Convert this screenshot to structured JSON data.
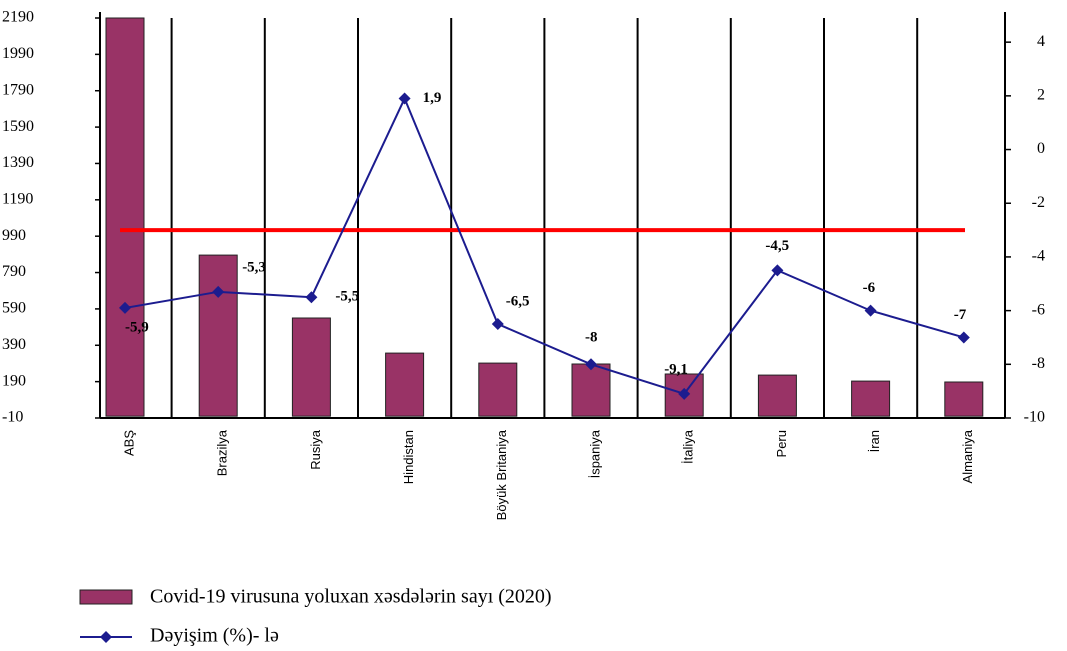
{
  "chart_data": {
    "type": "bar_line",
    "categories": [
      "ABŞ",
      "Brazilya",
      "Rusiya",
      "Hindistan",
      "Böyük Britaniya",
      "İspaniya",
      "İtaliya",
      "Peru",
      "İran",
      "Almaniya"
    ],
    "series": [
      {
        "name": "Covid-19 virusuna yoluxan xəsdələrin sayı (2020)",
        "type": "bar",
        "color": "#993366",
        "values": [
          2190,
          886,
          540,
          347,
          292,
          287,
          232,
          226,
          193,
          188
        ]
      },
      {
        "name": "Dəyişim (%)- lə",
        "type": "line",
        "axis": "y2",
        "color": "#1c1c8f",
        "values": [
          -5.9,
          -5.3,
          -5.5,
          1.9,
          -6.5,
          -8,
          -9.1,
          -4.5,
          -6,
          -7
        ],
        "value_labels": [
          "-5,9",
          "-5,3",
          "-5,5",
          "1,9",
          "-6,5",
          "-8",
          "-9,1",
          "-4,5",
          "-6",
          "-7"
        ]
      }
    ],
    "reference_line": {
      "value": -3,
      "axis": "y2",
      "color": "#ff0000"
    },
    "ylim": [
      -10,
      2190
    ],
    "yticks": [
      -10,
      190,
      390,
      590,
      790,
      990,
      1190,
      1390,
      1590,
      1790,
      1990,
      2190
    ],
    "y2lim": [
      -10,
      4.9
    ],
    "y2ticks": [
      -10,
      -8,
      -6,
      -4,
      -2,
      0,
      2,
      4
    ],
    "grid": "category-separators"
  }
}
